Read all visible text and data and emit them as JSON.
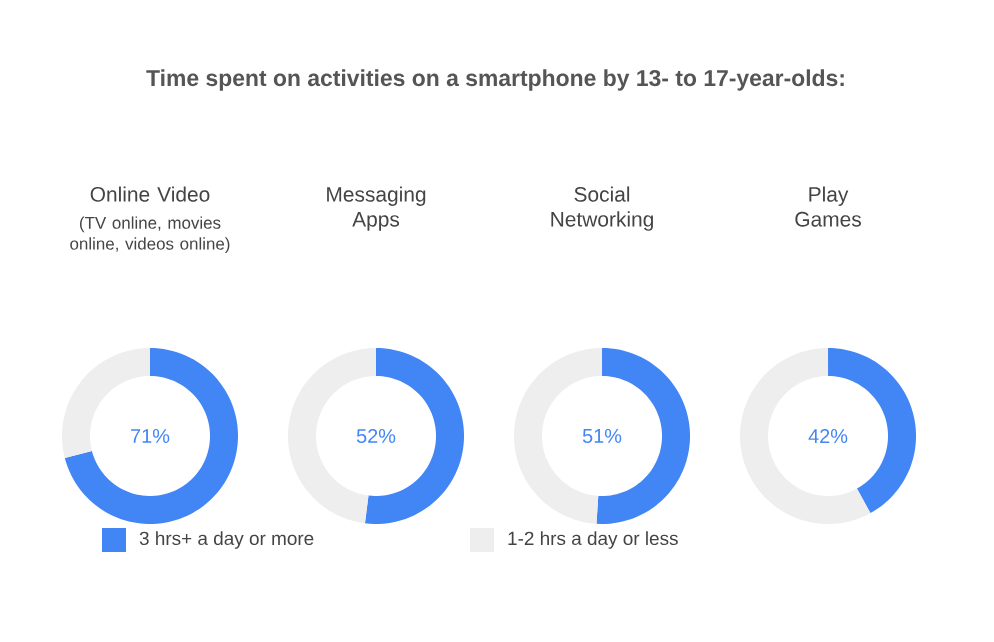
{
  "chart_data": [
    {
      "type": "other",
      "title": "Time spent on activities on a smartphone by 13- to 17-year-olds:"
    },
    {
      "type": "donut",
      "title": "Online Video",
      "subtitle": "(TV online, movies online, videos online)",
      "categories": [
        "3 hrs+ a day or more",
        "1-2 hrs a day or less"
      ],
      "values": [
        71,
        29
      ],
      "colors": [
        "#4285f4",
        "#eeeeee"
      ],
      "annotations": [
        "71%"
      ],
      "legend": "bottom"
    },
    {
      "type": "donut",
      "title": "Messaging Apps",
      "categories": [
        null,
        null
      ],
      "values": [
        52,
        48
      ],
      "colors": [
        "#4285f4",
        "#eeeeee"
      ],
      "annotations": [
        "52%"
      ]
    },
    {
      "type": "donut",
      "title": "Social Networking",
      "categories": [
        null,
        null
      ],
      "values": [
        51,
        49
      ],
      "colors": [
        "#4285f4",
        "#eeeeee"
      ],
      "annotations": [
        "51%"
      ]
    },
    {
      "type": "donut",
      "title": "Play Games",
      "categories": [
        null,
        null
      ],
      "values": [
        42,
        58
      ],
      "colors": [
        "#4285f4",
        "#eeeeee"
      ],
      "annotations": [
        "42%"
      ]
    }
  ]
}
